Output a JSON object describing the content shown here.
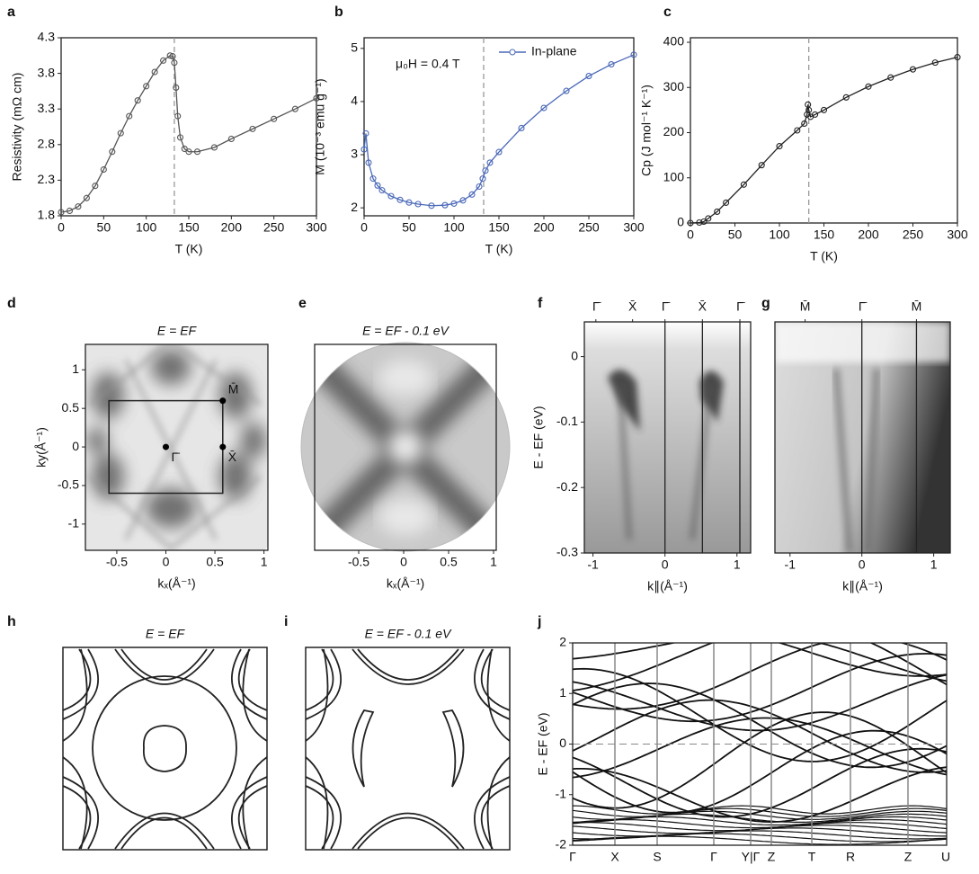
{
  "chart_data": [
    {
      "panel": "a",
      "type": "line",
      "xlabel": "T (K)",
      "ylabel": "Resistivity (mΩ cm)",
      "color": "#555555",
      "x": [
        0,
        10,
        20,
        30,
        40,
        50,
        60,
        70,
        80,
        90,
        100,
        110,
        120,
        128,
        131,
        133,
        135,
        137,
        140,
        145,
        150,
        160,
        180,
        200,
        225,
        250,
        275,
        300
      ],
      "values": [
        1.85,
        1.87,
        1.93,
        2.05,
        2.22,
        2.45,
        2.7,
        2.96,
        3.2,
        3.42,
        3.62,
        3.82,
        3.98,
        4.05,
        4.04,
        3.95,
        3.6,
        3.2,
        2.9,
        2.74,
        2.7,
        2.7,
        2.76,
        2.88,
        3.02,
        3.16,
        3.3,
        3.45
      ],
      "xlim": [
        0,
        300
      ],
      "xticks": [
        0,
        50,
        100,
        150,
        200,
        250,
        300
      ],
      "ylim": [
        1.8,
        4.3
      ],
      "yticks": [
        1.8,
        2.3,
        2.8,
        3.3,
        3.8,
        4.3
      ],
      "vline": 133
    },
    {
      "panel": "b",
      "type": "line",
      "xlabel": "T (K)",
      "ylabel": "M (10⁻³ emu g⁻¹)",
      "annotation": "μ₀H = 0.4 T",
      "x": [
        0,
        2,
        5,
        10,
        15,
        20,
        30,
        40,
        50,
        60,
        75,
        90,
        100,
        110,
        120,
        128,
        132,
        135,
        140,
        150,
        175,
        200,
        225,
        250,
        275,
        300
      ],
      "series": [
        {
          "name": "In-plane",
          "color": "#4a68b8",
          "values": [
            3.1,
            3.4,
            2.85,
            2.55,
            2.42,
            2.33,
            2.22,
            2.15,
            2.1,
            2.07,
            2.04,
            2.05,
            2.08,
            2.14,
            2.25,
            2.4,
            2.55,
            2.7,
            2.85,
            3.05,
            3.5,
            3.88,
            4.2,
            4.48,
            4.7,
            4.88
          ]
        }
      ],
      "xlim": [
        0,
        300
      ],
      "xticks": [
        0,
        50,
        100,
        150,
        200,
        250,
        300
      ],
      "ylim": [
        1.85,
        5.2
      ],
      "yticks": [
        2,
        3,
        4,
        5
      ],
      "vline": 133
    },
    {
      "panel": "c",
      "type": "line",
      "xlabel": "T (K)",
      "ylabel": "Cp (J mol⁻¹ K⁻¹)",
      "color": "#222222",
      "x": [
        0,
        10,
        15,
        20,
        30,
        40,
        60,
        80,
        100,
        120,
        128,
        131,
        132,
        133,
        135,
        140,
        150,
        175,
        200,
        225,
        250,
        275,
        300
      ],
      "values": [
        0,
        1,
        3,
        10,
        25,
        45,
        85,
        128,
        170,
        205,
        220,
        240,
        262,
        250,
        235,
        240,
        250,
        278,
        302,
        322,
        340,
        355,
        367
      ],
      "xlim": [
        0,
        300
      ],
      "xticks": [
        0,
        50,
        100,
        150,
        200,
        250,
        300
      ],
      "ylim": [
        0,
        410
      ],
      "yticks": [
        0,
        100,
        200,
        300,
        400
      ],
      "vline": 133
    },
    {
      "panel": "d",
      "type": "image",
      "title": "E = EF",
      "xlabel": "kₓ(Å⁻¹)",
      "ylabel": "ky(Å⁻¹)",
      "xlim": [
        -0.82,
        1.04
      ],
      "xticks": [
        -0.5,
        0,
        0.5,
        1
      ],
      "ylim": [
        -1.34,
        1.33
      ],
      "yticks": [
        -1,
        -0.5,
        0,
        0.5,
        1
      ],
      "points": [
        {
          "label": "Γ̄",
          "x": 0,
          "y": 0
        },
        {
          "label": "M̄",
          "x": 0.58,
          "y": 0.6
        },
        {
          "label": "X̄",
          "x": 0.58,
          "y": 0
        }
      ]
    },
    {
      "panel": "e",
      "type": "image",
      "title": "E = EF - 0.1 eV",
      "xlabel": "kₓ(Å⁻¹)",
      "xlim": [
        -0.99,
        1.03
      ],
      "xticks": [
        -0.5,
        0,
        0.5,
        1
      ]
    },
    {
      "panel": "f",
      "type": "image",
      "ylabel": "E - EF (eV)",
      "xlabel": "k∥(Å⁻¹)",
      "xlim": [
        -1.12,
        1.19
      ],
      "xticks": [
        -1,
        0,
        1
      ],
      "ylim": [
        -0.3,
        0.053
      ],
      "yticks": [
        0,
        -0.1,
        -0.2,
        -0.3
      ],
      "kpoint_labels": [
        "Γ̄",
        "X̄",
        "Γ̄",
        "X̄",
        "Γ̄"
      ],
      "kpoints": [
        -0.96,
        -0.45,
        0,
        0.52,
        1.04
      ],
      "vlines": [
        0,
        0.52,
        1.04
      ]
    },
    {
      "panel": "g",
      "type": "image",
      "xlabel": "k∥(Å⁻¹)",
      "xlim": [
        -1.21,
        1.23
      ],
      "xticks": [
        -1,
        0,
        1
      ],
      "ylim": [
        -0.3,
        0.053
      ],
      "kpoint_labels": [
        "M̄",
        "Γ̄",
        "M̄"
      ],
      "kpoints": [
        -0.79,
        0,
        0.76
      ],
      "vlines": [
        0,
        0.76
      ]
    },
    {
      "panel": "h",
      "type": "contour",
      "title": "E = EF"
    },
    {
      "panel": "i",
      "type": "contour",
      "title": "E = EF - 0.1 eV"
    },
    {
      "panel": "j",
      "type": "bands",
      "ylabel": "E - EF (eV)",
      "ylim": [
        -2,
        2
      ],
      "yticks": [
        -2,
        -1,
        0,
        1,
        2
      ],
      "hline": 0,
      "categories": [
        "Γ",
        "X",
        "S",
        "Γ",
        "Y|Γ",
        "Z",
        "T",
        "R",
        "Z",
        "U"
      ]
    }
  ]
}
